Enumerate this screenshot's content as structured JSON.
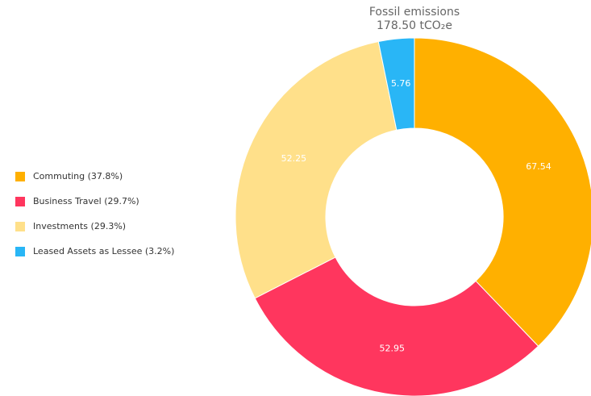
{
  "chart_data": {
    "type": "donut",
    "title": "Fossil emissions",
    "subtitle": "178.50 tCO₂e",
    "categories": [
      "Commuting (37.8%)",
      "Business Travel (29.7%)",
      "Investments (29.3%)",
      "Leased Assets as Lessee (3.2%)"
    ],
    "values": [
      67.54,
      52.95,
      52.25,
      5.76
    ],
    "colors": [
      "#ffb000",
      "#ff365e",
      "#ffe08a",
      "#29b6f6"
    ],
    "legend": "left"
  }
}
